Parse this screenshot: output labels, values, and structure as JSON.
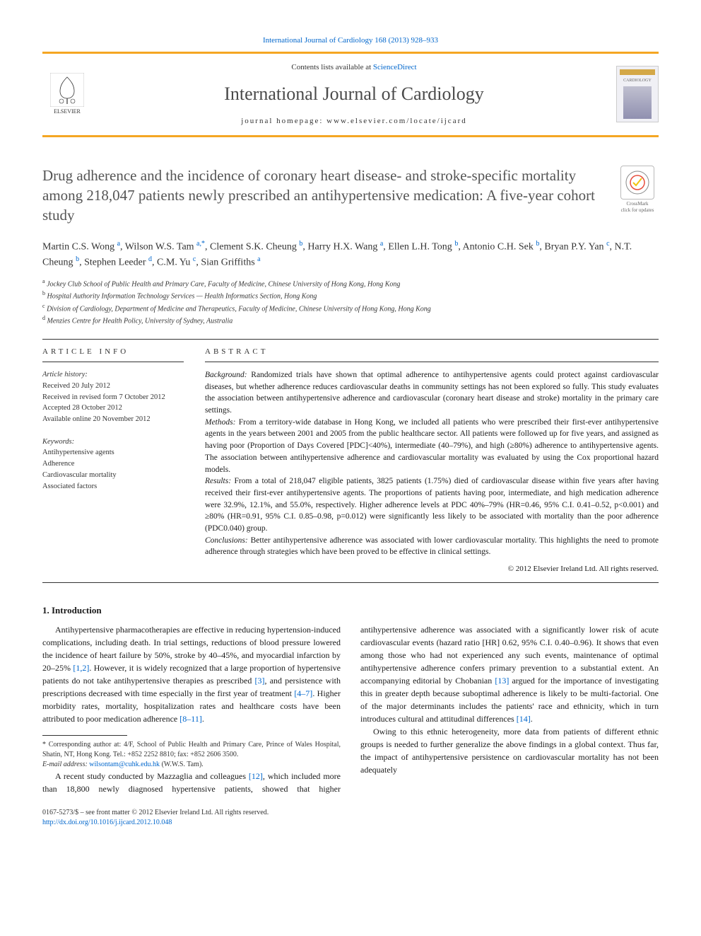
{
  "top_link": "International Journal of Cardiology 168 (2013) 928–933",
  "header": {
    "contents_prefix": "Contents lists available at ",
    "contents_link": "ScienceDirect",
    "journal_name": "International Journal of Cardiology",
    "homepage_prefix": "journal homepage: ",
    "homepage_url": "www.elsevier.com/locate/ijcard",
    "publisher_name": "ELSEVIER",
    "thumb_label": "CARDIOLOGY"
  },
  "crossmark": {
    "label": "CrossMark",
    "sub": "click for updates"
  },
  "title": "Drug adherence and the incidence of coronary heart disease- and stroke-specific mortality among 218,047 patients newly prescribed an antihypertensive medication: A five-year cohort study",
  "authors_html": "Martin C.S. Wong <span class=\"sup\">a</span>, Wilson W.S. Tam <span class=\"sup\">a,*</span>, Clement S.K. Cheung <span class=\"sup\">b</span>, Harry H.X. Wang <span class=\"sup\">a</span>, Ellen L.H. Tong <span class=\"sup\">b</span>, Antonio C.H. Sek <span class=\"sup\">b</span>, Bryan P.Y. Yan <span class=\"sup\">c</span>, N.T. Cheung <span class=\"sup\">b</span>, Stephen Leeder <span class=\"sup\">d</span>, C.M. Yu <span class=\"sup\">c</span>, Sian Griffiths <span class=\"sup\">a</span>",
  "affiliations": [
    {
      "sup": "a",
      "text": "Jockey Club School of Public Health and Primary Care, Faculty of Medicine, Chinese University of Hong Kong, Hong Kong"
    },
    {
      "sup": "b",
      "text": "Hospital Authority Information Technology Services — Health Informatics Section, Hong Kong"
    },
    {
      "sup": "c",
      "text": "Division of Cardiology, Department of Medicine and Therapeutics, Faculty of Medicine, Chinese University of Hong Kong, Hong Kong"
    },
    {
      "sup": "d",
      "text": "Menzies Centre for Health Policy, University of Sydney, Australia"
    }
  ],
  "article_info": {
    "heading": "ARTICLE INFO",
    "history_label": "Article history:",
    "history": [
      "Received 20 July 2012",
      "Received in revised form 7 October 2012",
      "Accepted 28 October 2012",
      "Available online 20 November 2012"
    ],
    "keywords_label": "Keywords:",
    "keywords": [
      "Antihypertensive agents",
      "Adherence",
      "Cardiovascular mortality",
      "Associated factors"
    ]
  },
  "abstract": {
    "heading": "ABSTRACT",
    "sections": {
      "background_label": "Background:",
      "background": "Randomized trials have shown that optimal adherence to antihypertensive agents could protect against cardiovascular diseases, but whether adherence reduces cardiovascular deaths in community settings has not been explored so fully. This study evaluates the association between antihypertensive adherence and cardiovascular (coronary heart disease and stroke) mortality in the primary care settings.",
      "methods_label": "Methods:",
      "methods": "From a territory-wide database in Hong Kong, we included all patients who were prescribed their first-ever antihypertensive agents in the years between 2001 and 2005 from the public healthcare sector. All patients were followed up for five years, and assigned as having poor (Proportion of Days Covered [PDC]<40%), intermediate (40–79%), and high (≥80%) adherence to antihypertensive agents. The association between antihypertensive adherence and cardiovascular mortality was evaluated by using the Cox proportional hazard models.",
      "results_label": "Results:",
      "results": "From a total of 218,047 eligible patients, 3825 patients (1.75%) died of cardiovascular disease within five years after having received their first-ever antihypertensive agents. The proportions of patients having poor, intermediate, and high medication adherence were 32.9%, 12.1%, and 55.0%, respectively. Higher adherence levels at PDC 40%–79% (HR=0.46, 95% C.I. 0.41–0.52, p<0.001) and ≥80% (HR=0.91, 95% C.I. 0.85–0.98, p=0.012) were significantly less likely to be associated with mortality than the poor adherence (PDC0.040) group.",
      "conclusions_label": "Conclusions:",
      "conclusions": "Better antihypertensive adherence was associated with lower cardiovascular mortality. This highlights the need to promote adherence through strategies which have been proved to be effective in clinical settings."
    },
    "copyright": "© 2012 Elsevier Ireland Ltd. All rights reserved."
  },
  "intro": {
    "heading": "1. Introduction",
    "p1_a": "Antihypertensive pharmacotherapies are effective in reducing hypertension-induced complications, including death. In trial settings, reductions of blood pressure lowered the incidence of heart failure by 50%, stroke by 40–45%, and myocardial infarction by 20–25% ",
    "p1_cite1": "[1,2]",
    "p1_b": ". However, it is widely recognized that a large proportion of hypertensive patients do not take antihypertensive therapies as prescribed ",
    "p1_cite2": "[3]",
    "p1_c": ", and persistence with prescriptions decreased with time especially in the first year of treatment ",
    "p1_cite3": "[4–7]",
    "p1_d": ". Higher morbidity rates, mortality, hospitalization rates and healthcare costs have been attributed to poor medication adherence ",
    "p1_cite4": "[8–11]",
    "p1_e": ".",
    "p2_a": "A recent study conducted by Mazzaglia and colleagues ",
    "p2_cite1": "[12]",
    "p2_b": ", which included more than 18,800 newly diagnosed hypertensive patients, showed that higher antihypertensive adherence was associated with a significantly lower risk of acute cardiovascular events (hazard ratio [HR] 0.62, 95% C.I. 0.40–0.96). It shows that even among those who had not experienced any such events, maintenance of optimal antihypertensive adherence confers primary prevention to a substantial extent. An accompanying editorial by Chobanian ",
    "p2_cite2": "[13]",
    "p2_c": " argued for the importance of investigating this in greater depth because suboptimal adherence is likely to be multi-factorial. One of the major determinants includes the patients' race and ethnicity, which in turn introduces cultural and attitudinal differences ",
    "p2_cite3": "[14]",
    "p2_d": ".",
    "p3": "Owing to this ethnic heterogeneity, more data from patients of different ethnic groups is needed to further generalize the above findings in a global context. Thus far, the impact of antihypertensive persistence on cardiovascular mortality has not been adequately"
  },
  "footnote": {
    "corr": "* Corresponding author at: 4/F, School of Public Health and Primary Care, Prince of Wales Hospital, Shatin, NT, Hong Kong. Tel.: +852 2252 8810; fax: +852 2606 3500.",
    "email_label": "E-mail address: ",
    "email": "wilsontam@cuhk.edu.hk",
    "email_suffix": " (W.W.S. Tam)."
  },
  "footer": {
    "left_line1": "0167-5273/$ – see front matter © 2012 Elsevier Ireland Ltd. All rights reserved.",
    "doi": "http://dx.doi.org/10.1016/j.ijcard.2012.10.048"
  }
}
